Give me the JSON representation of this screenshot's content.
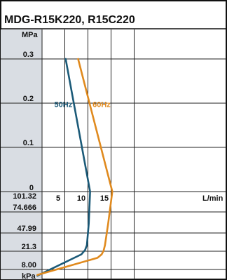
{
  "chart_data": {
    "type": "line",
    "title": "MDG-R15K220, R15C220",
    "colors": {
      "band": "#d9dde3",
      "grid": "#222222",
      "series_50": "#1b5a78",
      "series_60": "#e08a1e"
    },
    "x_axis": {
      "unit": "L/min",
      "range": [
        0,
        20
      ],
      "ticks": [
        5,
        10,
        15
      ]
    },
    "y_top": {
      "unit": "MPa",
      "range": [
        0,
        0.3
      ],
      "ticks": [
        "0.3",
        "0.2",
        "0.1",
        "0"
      ]
    },
    "y_bottom": {
      "unit": "kPa",
      "ticks": [
        "101.32",
        "74.666",
        "47.99",
        "21.3",
        "8.00"
      ]
    },
    "series": [
      {
        "name": "50Hz",
        "pressure_points": [
          [
            5.1,
            0.3
          ],
          [
            10.4,
            0
          ]
        ],
        "vacuum_points": [
          [
            10.4,
            101.32
          ],
          [
            10.1,
            60
          ],
          [
            9.7,
            30
          ],
          [
            9.3,
            23
          ],
          [
            8.5,
            19
          ],
          [
            -1,
            3.5
          ]
        ]
      },
      {
        "name": "60Hz",
        "pressure_points": [
          [
            7.8,
            0.3
          ],
          [
            15.2,
            0
          ]
        ],
        "vacuum_points": [
          [
            15.2,
            101.32
          ],
          [
            14.3,
            60
          ],
          [
            13.6,
            30
          ],
          [
            13.3,
            22
          ],
          [
            12.9,
            19
          ],
          [
            12,
            16.5
          ],
          [
            -1,
            4
          ]
        ]
      }
    ]
  }
}
